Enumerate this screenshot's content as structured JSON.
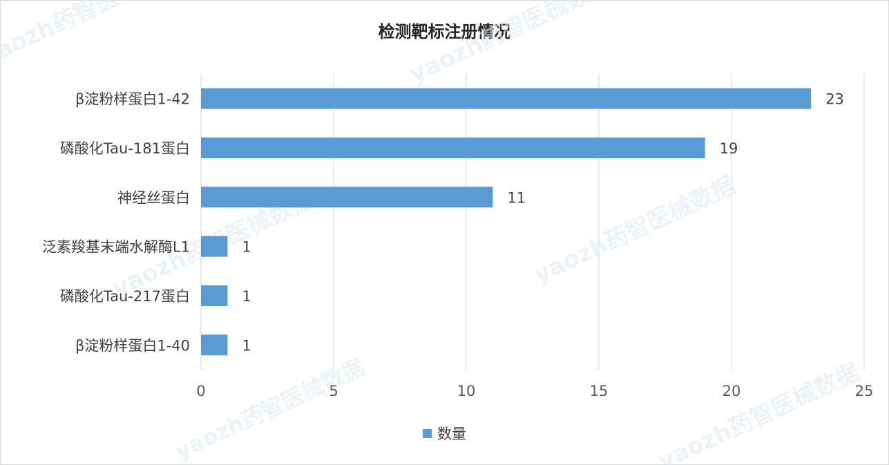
{
  "chart_data": {
    "type": "bar",
    "orientation": "horizontal",
    "title": "检测靶标注册情况",
    "categories": [
      "β淀粉样蛋白1-42",
      "磷酸化Tau-181蛋白",
      "神经丝蛋白",
      "泛素羧基末端水解酶L1",
      "磷酸化Tau-217蛋白",
      "β淀粉样蛋白1-40"
    ],
    "series": [
      {
        "name": "数量",
        "values": [
          23,
          19,
          11,
          1,
          1,
          1
        ],
        "color": "#5b9bd5"
      }
    ],
    "xlim": [
      0,
      25
    ],
    "xticks": [
      0,
      5,
      10,
      15,
      20,
      25
    ],
    "grid": "vertical",
    "legend": "bottom-center",
    "data_labels": true
  },
  "watermark": "yaozh药智医械数据"
}
